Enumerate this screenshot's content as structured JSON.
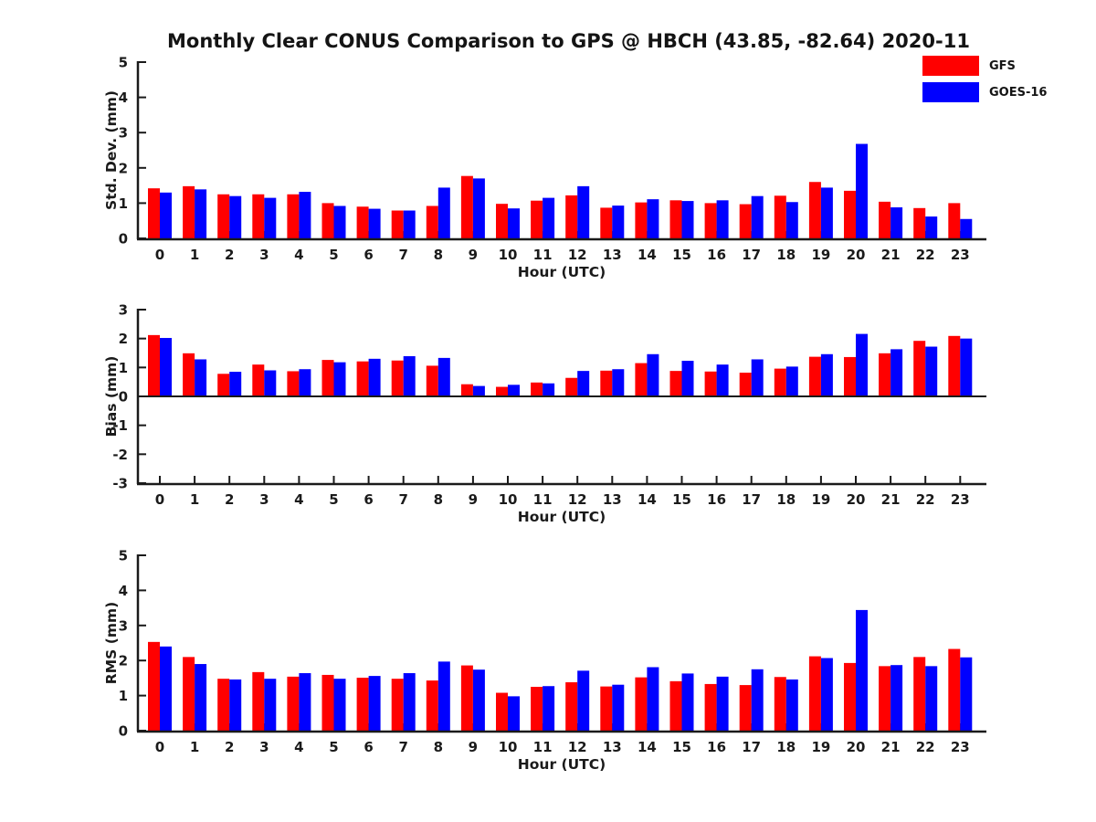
{
  "title": "Monthly Clear CONUS Comparison to GPS @ HBCH (43.85, -82.64) 2020-11",
  "legend": [
    {
      "label": "GFS",
      "color": "#ff0000"
    },
    {
      "label": "GOES-16",
      "color": "#0000ff"
    }
  ],
  "colors": {
    "gfs": "#ff0000",
    "goes16": "#0000ff",
    "axis": "#1a1a1a",
    "background": "#ffffff"
  },
  "chart_data": [
    {
      "id": "std-dev",
      "type": "bar",
      "title": "",
      "ylabel": "Std. Dev. (mm)",
      "xlabel": "Hour (UTC)",
      "ylim": [
        0,
        5
      ],
      "yticks": [
        0,
        1,
        2,
        3,
        4,
        5
      ],
      "grid": false,
      "legend_position": "top-right",
      "categories": [
        "0",
        "1",
        "2",
        "3",
        "4",
        "5",
        "6",
        "7",
        "8",
        "9",
        "10",
        "11",
        "12",
        "13",
        "14",
        "15",
        "16",
        "17",
        "18",
        "19",
        "20",
        "21",
        "22",
        "23"
      ],
      "series": [
        {
          "name": "GFS",
          "color": "#ff0000",
          "values": [
            1.42,
            1.48,
            1.25,
            1.25,
            1.25,
            1.0,
            0.9,
            0.79,
            0.92,
            1.77,
            0.98,
            1.07,
            1.22,
            0.87,
            1.02,
            1.08,
            1.0,
            0.97,
            1.21,
            1.6,
            1.35,
            1.04,
            0.86,
            1.0
          ]
        },
        {
          "name": "GOES-16",
          "color": "#0000ff",
          "values": [
            1.3,
            1.39,
            1.2,
            1.15,
            1.32,
            0.92,
            0.84,
            0.79,
            1.44,
            1.7,
            0.85,
            1.15,
            1.48,
            0.93,
            1.11,
            1.06,
            1.08,
            1.2,
            1.03,
            1.44,
            2.68,
            0.88,
            0.62,
            0.55
          ]
        }
      ]
    },
    {
      "id": "bias",
      "type": "bar",
      "title": "",
      "ylabel": "Bias (mm)",
      "xlabel": "Hour (UTC)",
      "ylim": [
        -3,
        3
      ],
      "yticks": [
        3,
        2,
        1,
        0,
        -1,
        -2,
        -3
      ],
      "grid": false,
      "legend_position": "none",
      "categories": [
        "0",
        "1",
        "2",
        "3",
        "4",
        "5",
        "6",
        "7",
        "8",
        "9",
        "10",
        "11",
        "12",
        "13",
        "14",
        "15",
        "16",
        "17",
        "18",
        "19",
        "20",
        "21",
        "22",
        "23"
      ],
      "series": [
        {
          "name": "GFS",
          "color": "#ff0000",
          "values": [
            2.12,
            1.49,
            0.78,
            1.1,
            0.87,
            1.26,
            1.21,
            1.24,
            1.06,
            0.42,
            0.33,
            0.48,
            0.64,
            0.89,
            1.15,
            0.88,
            0.86,
            0.82,
            0.96,
            1.37,
            1.36,
            1.49,
            1.92,
            2.09
          ]
        },
        {
          "name": "GOES-16",
          "color": "#0000ff",
          "values": [
            2.02,
            1.28,
            0.85,
            0.9,
            0.94,
            1.18,
            1.3,
            1.39,
            1.33,
            0.36,
            0.4,
            0.45,
            0.88,
            0.94,
            1.46,
            1.23,
            1.1,
            1.28,
            1.03,
            1.46,
            2.16,
            1.63,
            1.72,
            2.0
          ]
        }
      ]
    },
    {
      "id": "rms",
      "type": "bar",
      "title": "",
      "ylabel": "RMS (mm)",
      "xlabel": "Hour (UTC)",
      "ylim": [
        0,
        5
      ],
      "yticks": [
        0,
        1,
        2,
        3,
        4,
        5
      ],
      "grid": false,
      "legend_position": "none",
      "categories": [
        "0",
        "1",
        "2",
        "3",
        "4",
        "5",
        "6",
        "7",
        "8",
        "9",
        "10",
        "11",
        "12",
        "13",
        "14",
        "15",
        "16",
        "17",
        "18",
        "19",
        "20",
        "21",
        "22",
        "23"
      ],
      "series": [
        {
          "name": "GFS",
          "color": "#ff0000",
          "values": [
            2.53,
            2.1,
            1.48,
            1.67,
            1.54,
            1.59,
            1.51,
            1.48,
            1.43,
            1.86,
            1.08,
            1.25,
            1.38,
            1.26,
            1.52,
            1.41,
            1.33,
            1.3,
            1.53,
            2.12,
            1.93,
            1.84,
            2.1,
            2.33
          ]
        },
        {
          "name": "GOES-16",
          "color": "#0000ff",
          "values": [
            2.4,
            1.9,
            1.46,
            1.48,
            1.64,
            1.48,
            1.56,
            1.64,
            1.97,
            1.74,
            0.98,
            1.27,
            1.71,
            1.31,
            1.81,
            1.63,
            1.54,
            1.75,
            1.46,
            2.07,
            3.44,
            1.87,
            1.84,
            2.09
          ]
        }
      ]
    }
  ]
}
